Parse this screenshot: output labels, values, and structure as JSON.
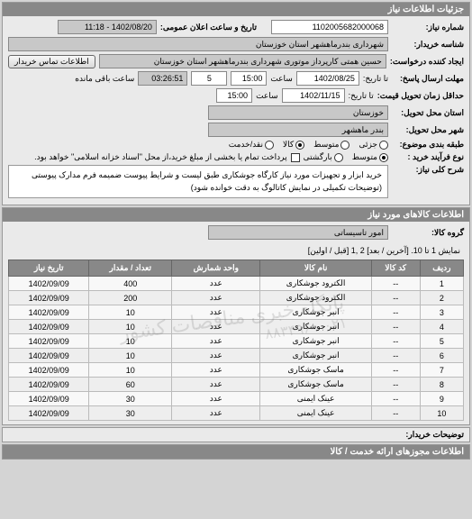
{
  "panels": {
    "need_info": {
      "title": "جزئیات اطلاعات نیاز"
    },
    "goods_info": {
      "title": "اطلاعات کالاهای مورد نیاز"
    },
    "explanations": {
      "title": "توضیحات خریدار:"
    },
    "licenses": {
      "title": "اطلاعات مجوزهای ارائه خدمت / کالا"
    }
  },
  "fields": {
    "number_label": "شماره نیاز:",
    "number_value": "1102005682000068",
    "ann_label": "تاریخ و ساعت اعلان عمومی:",
    "ann_value": "1402/08/20 - 11:18",
    "buyer_label": "شناسه خریدار:",
    "buyer_value": "شهرداری بندرماهشهر استان خوزستان",
    "requester_label": "ایجاد کننده درخواست:",
    "requester_value": "حسین همتی کارپرداز موتوری شهرداری بندرماهشهر استان خوزستان",
    "contact_btn": "اطلاعات تماس خریدار",
    "deadline_send_label": "مهلت ارسال پاسخ:",
    "to_label": "تا تاریخ:",
    "deadline_date": "1402/08/25",
    "time_label": "ساعت",
    "deadline_time": "15:00",
    "days_box": "5",
    "remain_time": "03:26:51",
    "remain_label": "ساعت باقی مانده",
    "min_deliver_label": "حداقل زمان تحویل قیمت:",
    "min_deliver_date": "1402/11/15",
    "min_deliver_time": "15:00",
    "province_label": "استان محل تحویل:",
    "province_value": "خوزستان",
    "city_label": "شهر محل تحویل:",
    "city_value": "بندر ماهشهر",
    "budget_label": "طبقه بندی موضوع:",
    "budget_options": {
      "small": "جزئی",
      "medium": "متوسط",
      "goods": "کالا",
      "cash": "نقد/خدمت"
    },
    "proc_label": "نوع فرآیند خرید :",
    "proc_options": {
      "normal": "متوسط",
      "urgent": "بارگشتی"
    },
    "proc_note": "پرداخت تمام یا بخشی از مبلغ خرید،از محل \"اسناد خزانه اسلامی\" خواهد بود.",
    "general_label": "شرح کلی نیاز:",
    "general_value": "خرید ابزار و تجهیزات مورد نیاز کارگاه جوشکاری طبق لیست و شرایط پیوست ضمیمه فرم مدارک پیوستی (توضیحات تکمیلی در نمایش کاتالوگ به دقت خوانده شود)",
    "goods_group_label": "گروه کالا:",
    "goods_group_value": "امور تاسیساتی"
  },
  "pager": {
    "text_prefix": "نمایش 1 تا 10.",
    "links": "[آخرین / بعد] 2 ,1 [قبل / اولین]"
  },
  "table": {
    "cols": [
      "ردیف",
      "کد کالا",
      "نام کالا",
      "واحد شمارش",
      "تعداد / مقدار",
      "تاریخ نیاز"
    ],
    "rows": [
      [
        "1",
        "--",
        "الکترود جوشکاری",
        "عدد",
        "400",
        "1402/09/09"
      ],
      [
        "2",
        "--",
        "الکترود جوشکاری",
        "عدد",
        "200",
        "1402/09/09"
      ],
      [
        "3",
        "--",
        "انبر جوشکاری",
        "عدد",
        "10",
        "1402/09/09"
      ],
      [
        "4",
        "--",
        "انبر جوشکاری",
        "عدد",
        "10",
        "1402/09/09"
      ],
      [
        "5",
        "--",
        "انبر جوشکاری",
        "عدد",
        "10",
        "1402/09/09"
      ],
      [
        "6",
        "--",
        "انبر جوشکاری",
        "عدد",
        "10",
        "1402/09/09"
      ],
      [
        "7",
        "--",
        "ماسک جوشکاری",
        "عدد",
        "10",
        "1402/09/09"
      ],
      [
        "8",
        "--",
        "ماسک جوشکاری",
        "عدد",
        "60",
        "1402/09/09"
      ],
      [
        "9",
        "--",
        "عینک ایمنی",
        "عدد",
        "30",
        "1402/09/09"
      ],
      [
        "10",
        "--",
        "عینک ایمنی",
        "عدد",
        "30",
        "1402/09/09"
      ]
    ]
  },
  "watermark": {
    "line1": "پایگاه خبری مناقصات کشور",
    "line2": "۰۲۱ - ۸۸۳۴۹۶"
  }
}
